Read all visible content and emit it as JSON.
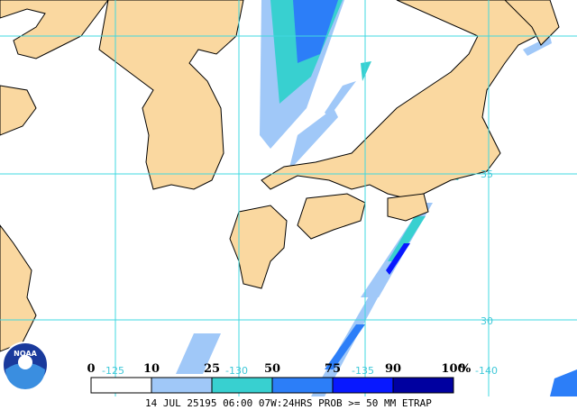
{
  "legend": {
    "labels": [
      "0",
      "10",
      "25",
      "50",
      "75",
      "90",
      "100"
    ],
    "unit": "%",
    "colors": [
      "#ffffff",
      "#a0c8f8",
      "#38d0d0",
      "#2c7ef8",
      "#0818ff",
      "#0000a0"
    ]
  },
  "grid_labels": {
    "lon": [
      "-125",
      "-130",
      "-135",
      "-140"
    ],
    "lat": [
      "35",
      "30"
    ]
  },
  "logo": "NOAA",
  "footer": "14 JUL 25195 06:00 07W:24HRS PROB >= 50 MM ETRAP"
}
